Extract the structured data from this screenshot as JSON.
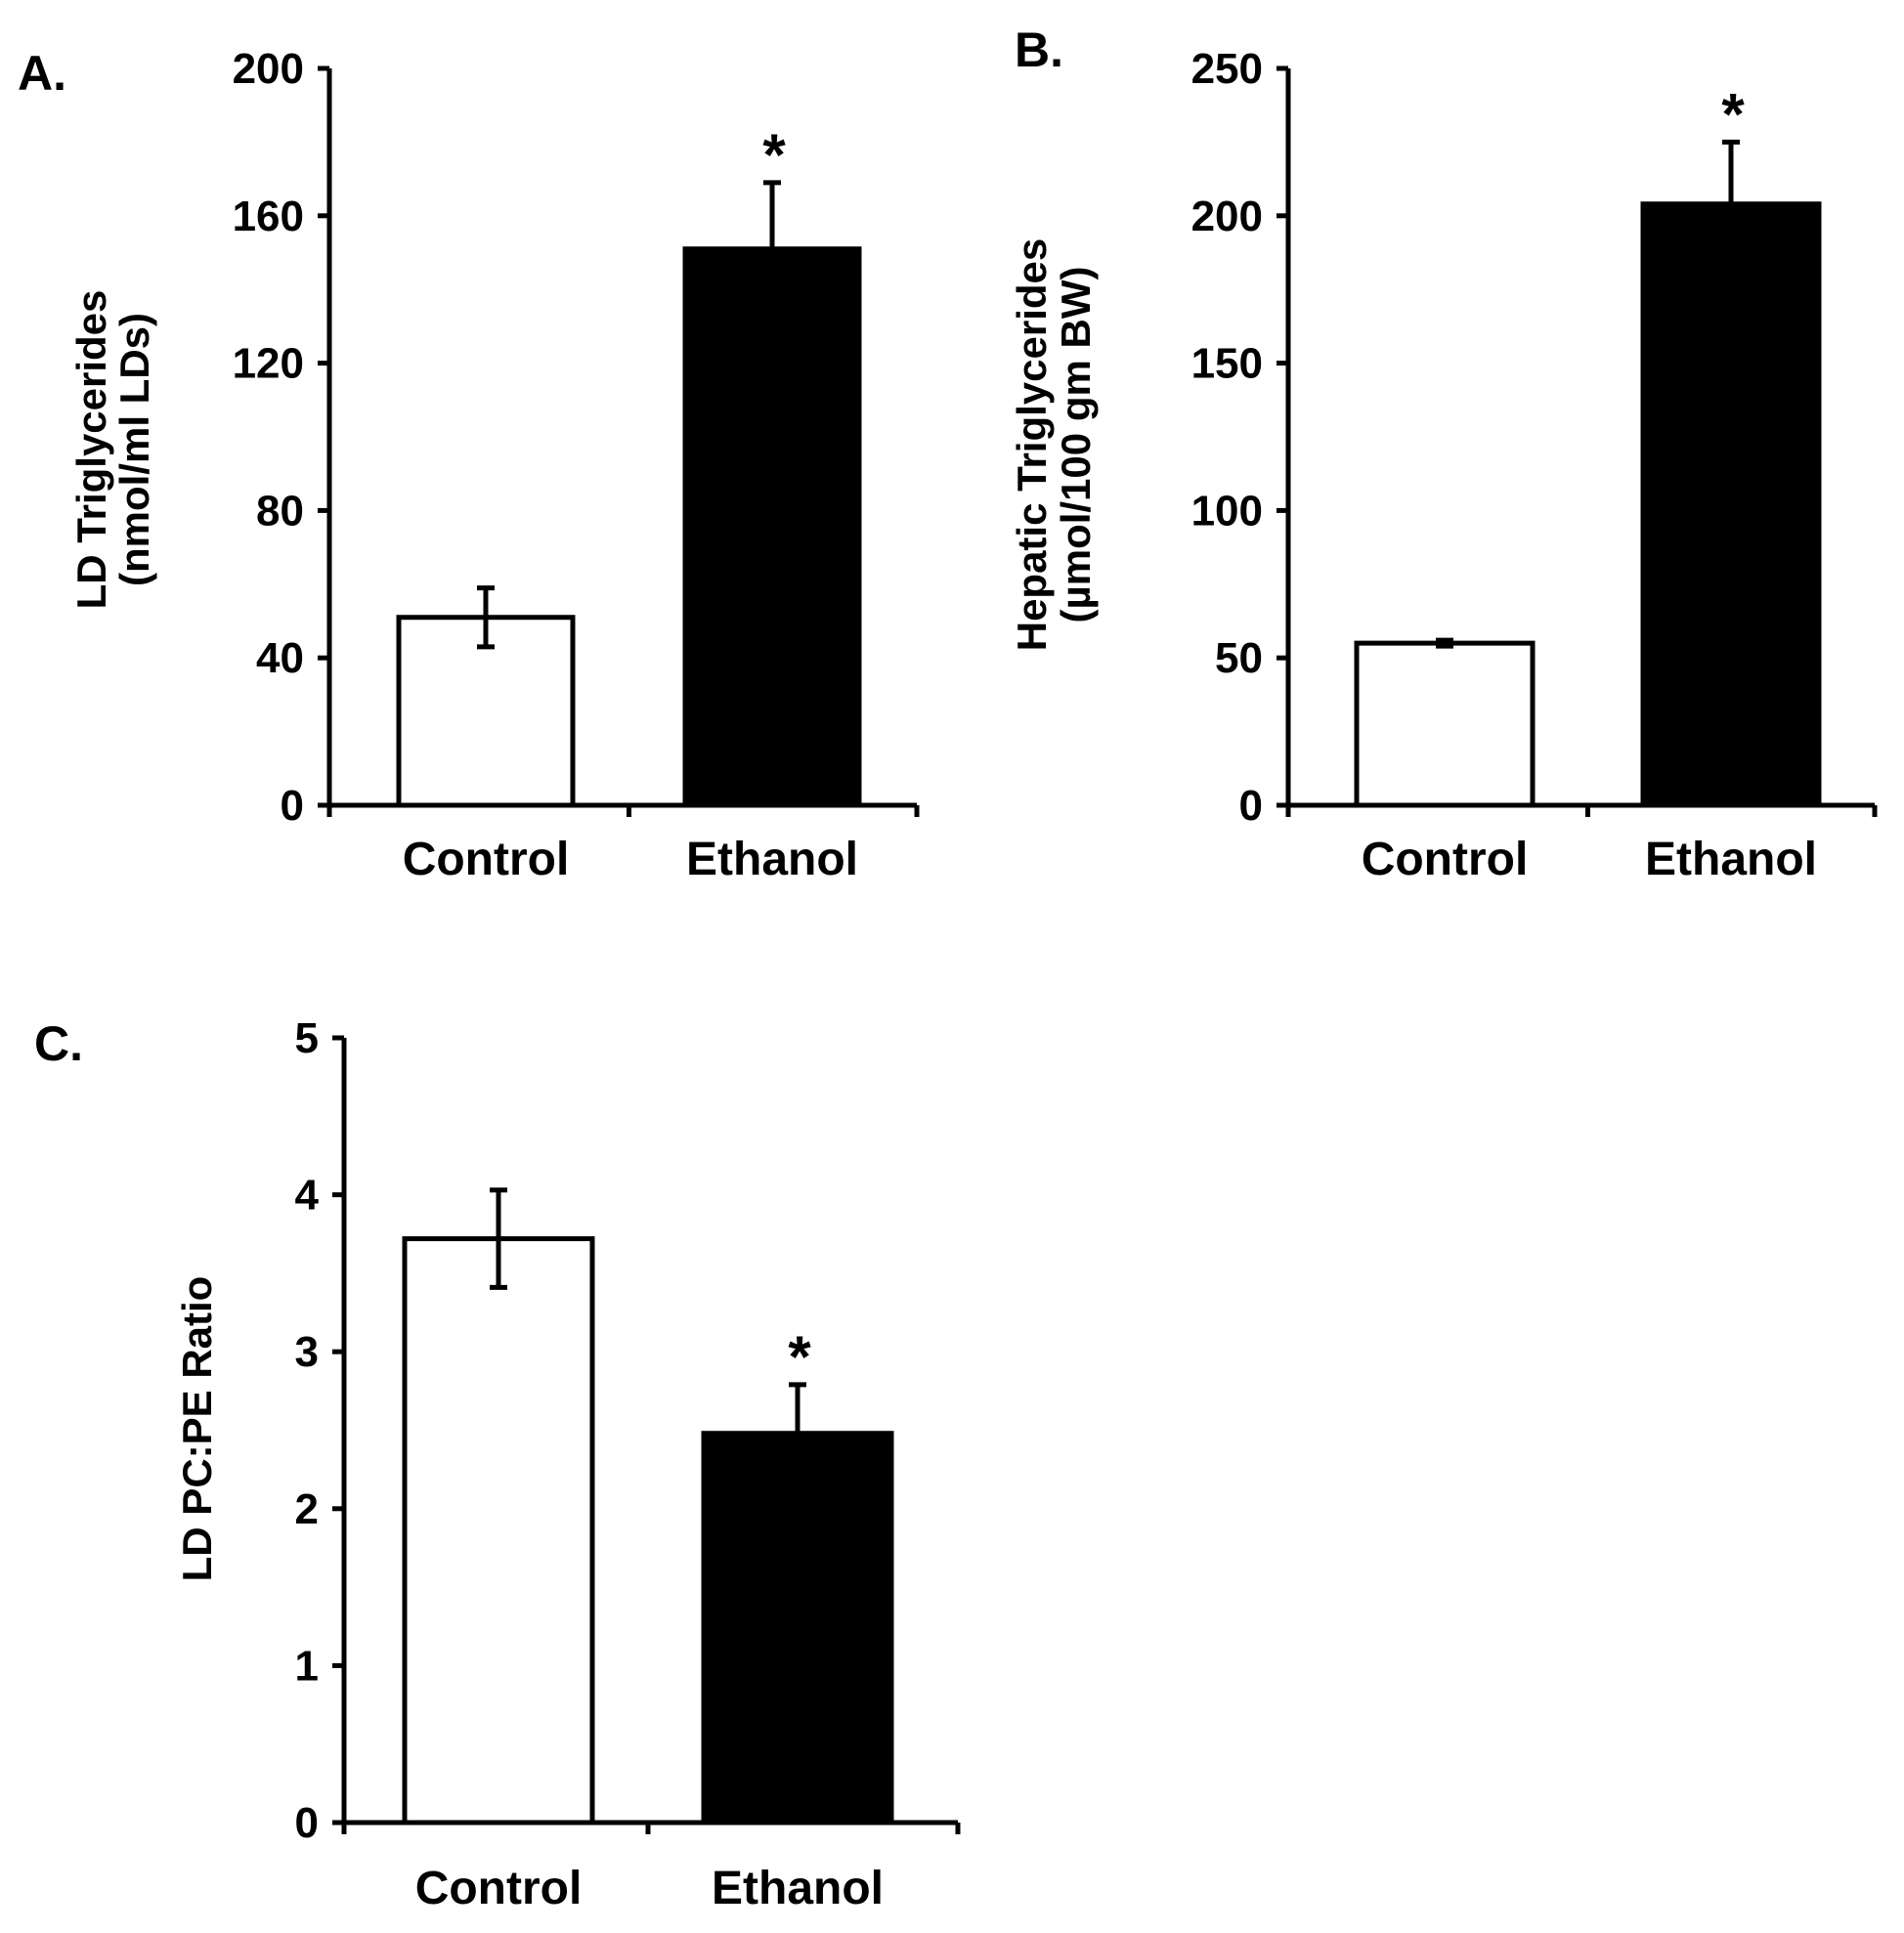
{
  "chart_data": [
    {
      "type": "bar",
      "panel_label": "A.",
      "title": "",
      "xlabel": "",
      "ylabel_lines": [
        "LD Triglycerides",
        "(nmol/ml LDs)"
      ],
      "categories": [
        "Control",
        "Ethanol"
      ],
      "values": [
        51,
        151
      ],
      "errors": [
        8,
        18
      ],
      "significance": [
        "",
        "*"
      ],
      "bar_fills": [
        "#ffffff",
        "#000000"
      ],
      "ylim": [
        0,
        200
      ],
      "yticks": [
        0,
        40,
        80,
        120,
        160,
        200
      ],
      "grid": false
    },
    {
      "type": "bar",
      "panel_label": "B.",
      "title": "",
      "xlabel": "",
      "ylabel_lines": [
        "Hepatic Triglycerides",
        "(µmol/100 gm BW)"
      ],
      "categories": [
        "Control",
        "Ethanol"
      ],
      "values": [
        55,
        204
      ],
      "errors": [
        1,
        21
      ],
      "significance": [
        "",
        "*"
      ],
      "bar_fills": [
        "#ffffff",
        "#000000"
      ],
      "ylim": [
        0,
        250
      ],
      "yticks": [
        0,
        50,
        100,
        150,
        200,
        250
      ],
      "grid": false
    },
    {
      "type": "bar",
      "panel_label": "C.",
      "title": "",
      "xlabel": "",
      "ylabel_lines": [
        "LD PC:PE Ratio"
      ],
      "categories": [
        "Control",
        "Ethanol"
      ],
      "values": [
        3.72,
        2.48
      ],
      "errors": [
        0.31,
        0.31
      ],
      "significance": [
        "",
        "*"
      ],
      "bar_fills": [
        "#ffffff",
        "#000000"
      ],
      "ylim": [
        0,
        5
      ],
      "yticks": [
        0,
        1,
        2,
        3,
        4,
        5
      ],
      "grid": false
    }
  ]
}
